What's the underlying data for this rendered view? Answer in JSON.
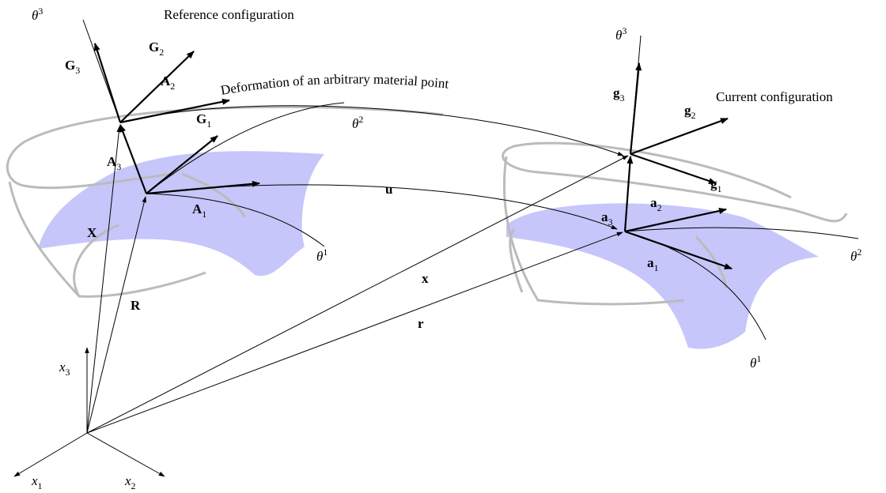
{
  "titles": {
    "reference": "Reference configuration",
    "current": "Current configuration",
    "deformation": "Deformation of an arbitrary material point"
  },
  "labels": [
    {
      "base": "θ",
      "sup": "3"
    },
    {
      "base": "G",
      "sub": "3"
    },
    {
      "base": "G",
      "sub": "2"
    },
    {
      "base": "G",
      "sub": "1"
    },
    {
      "base": "A",
      "sub": "2"
    },
    {
      "base": "A",
      "sub": "3"
    },
    {
      "base": "θ",
      "sup": "2"
    },
    {
      "base": "A",
      "sub": "1"
    },
    {
      "base": "X"
    },
    {
      "base": "θ",
      "sup": "1"
    },
    {
      "base": "R"
    },
    {
      "base": "u"
    },
    {
      "base": "x"
    },
    {
      "base": "r"
    },
    {
      "base": "x",
      "sub": "3"
    },
    {
      "base": "x",
      "sub": "1"
    },
    {
      "base": "x",
      "sub": "2"
    },
    {
      "base": "θ",
      "sup": "3"
    },
    {
      "base": "g",
      "sub": "3"
    },
    {
      "base": "g",
      "sub": "2"
    },
    {
      "base": "g",
      "sub": "1"
    },
    {
      "base": "a",
      "sub": "3"
    },
    {
      "base": "a",
      "sub": "2"
    },
    {
      "base": "a",
      "sub": "1"
    },
    {
      "base": "θ",
      "sup": "2"
    },
    {
      "base": "θ",
      "sup": "1"
    }
  ]
}
